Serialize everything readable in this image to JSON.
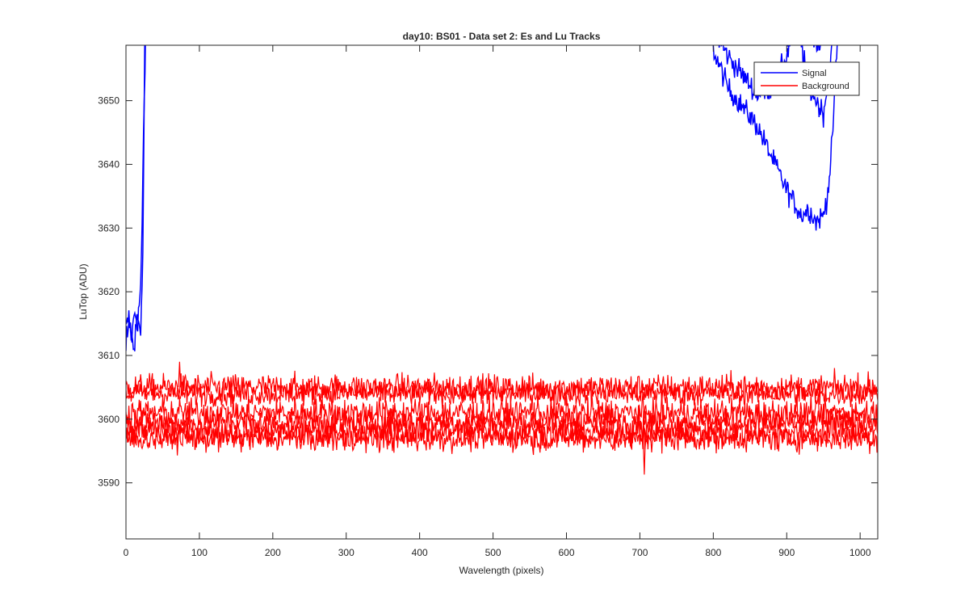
{
  "chart_data": {
    "type": "line",
    "title": "day10: BS01 - Data set 2: Es and Lu Tracks",
    "xlabel": "Wavelength (pixels)",
    "ylabel": "LuTop (ADU)",
    "xlim": [
      0,
      1024
    ],
    "ylim": [
      3581.2,
      3658.7
    ],
    "x_ticks": [
      0,
      100,
      200,
      300,
      400,
      500,
      600,
      700,
      800,
      900,
      1000
    ],
    "y_ticks": [
      3590,
      3600,
      3610,
      3620,
      3630,
      3640,
      3650
    ],
    "grid": false,
    "legend": {
      "placement": "top-right",
      "entries": [
        "Signal",
        "Background"
      ]
    },
    "series": [
      {
        "name": "Signal",
        "color": "#0000ff",
        "traces": [
          {
            "x": [
              0,
              4,
              8,
              12,
              16,
              18,
              20,
              22,
              24,
              26,
              28
            ],
            "y": [
              3614,
              3616,
              3613,
              3617,
              3615,
              3618,
              3621,
              3630,
              3645,
              3655,
              3670
            ]
          },
          {
            "x": [
              0,
              5,
              10,
              15,
              20,
              23,
              26
            ],
            "y": [
              3612,
              3615,
              3611,
              3616,
              3614,
              3625,
              3665
            ]
          },
          {
            "x": [
              790,
              800,
              820,
              840,
              860,
              880,
              900,
              910,
              920,
              930,
              940,
              950,
              955,
              960,
              965,
              970
            ],
            "y": [
              3662,
              3658,
              3652,
              3649,
              3646,
              3641,
              3636,
              3634,
              3632,
              3633,
              3631,
              3632,
              3635,
              3640,
              3650,
              3662
            ]
          },
          {
            "x": [
              800,
              820,
              840,
              860,
              880,
              900,
              910,
              920,
              930,
              940,
              950,
              955,
              960,
              965,
              970
            ],
            "y": [
              3661,
              3657,
              3654,
              3651,
              3652,
              3657,
              3662,
              3659,
              3652,
              3650,
              3648,
              3652,
              3657,
              3661,
              3665
            ]
          },
          {
            "x": [
              880,
              900,
              920,
              940,
              960,
              970
            ],
            "y": [
              3662,
              3659,
              3663,
              3658,
              3662,
              3666
            ]
          }
        ]
      },
      {
        "name": "Background",
        "color": "#ff0000",
        "traces": [
          {
            "level": 3605,
            "noise": 1.4
          },
          {
            "level": 3604,
            "noise": 1.3
          },
          {
            "level": 3601,
            "noise": 1.5
          },
          {
            "level": 3599.5,
            "noise": 1.5
          },
          {
            "level": 3598,
            "noise": 1.5
          },
          {
            "level": 3597,
            "noise": 1.4
          }
        ],
        "min_point": {
          "x": 706,
          "y": 3591.3
        },
        "max_point": {
          "x": 73,
          "y": 3609
        }
      }
    ]
  }
}
